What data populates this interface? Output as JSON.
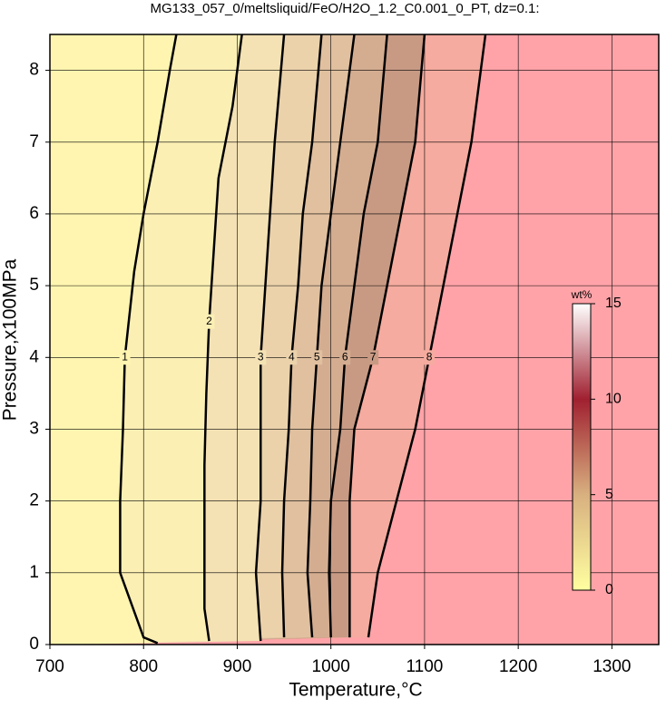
{
  "chart_data": {
    "type": "contour",
    "title": "MG133_057_0/meltsliquid/FeO/H2O_1.2_C0.001_0_PT, dz=0.1:",
    "xlabel": "Temperature,°C",
    "ylabel": "Pressure,x100MPa",
    "xlim": [
      700,
      1350
    ],
    "ylim": [
      0,
      8.5
    ],
    "xticks": [
      700,
      800,
      900,
      1000,
      1100,
      1200,
      1300
    ],
    "yticks": [
      0,
      1,
      2,
      3,
      4,
      5,
      6,
      7,
      8
    ],
    "grid": true,
    "background": "#ffa3a8",
    "contours": [
      {
        "label": "8",
        "fill": "#f5ab9f",
        "x": [
          1040,
          1050,
          1070,
          1090,
          1105,
          1120,
          1135,
          1150,
          1165
        ],
        "y": [
          0.1,
          1,
          2,
          3,
          4,
          5,
          6,
          7,
          8.5
        ]
      },
      {
        "label": "7",
        "fill": "#c89a84",
        "x": [
          1020,
          1020,
          1020,
          1025,
          1045,
          1060,
          1075,
          1090,
          1100
        ],
        "y": [
          0.1,
          1,
          2,
          3,
          4,
          5,
          6,
          7,
          8.5
        ]
      },
      {
        "label": "6",
        "fill": "#d4ad91",
        "x": [
          1000,
          998,
          1000,
          1010,
          1015,
          1025,
          1035,
          1050,
          1060
        ],
        "y": [
          0.1,
          1,
          2,
          3,
          4,
          5,
          6,
          7,
          8.5
        ]
      },
      {
        "label": "5",
        "fill": "#e0c09f",
        "x": [
          980,
          975,
          978,
          980,
          985,
          990,
          1000,
          1010,
          1025
        ],
        "y": [
          0.1,
          1,
          2,
          3,
          4,
          5,
          6,
          7,
          8.5
        ]
      },
      {
        "label": "4",
        "fill": "#ebd2ab",
        "x": [
          950,
          948,
          950,
          955,
          958,
          965,
          970,
          980,
          990
        ],
        "y": [
          0.1,
          1,
          2,
          3,
          4,
          5,
          6,
          7,
          8.5
        ]
      },
      {
        "label": "3",
        "fill": "#f4e2b4",
        "x": [
          925,
          920,
          925,
          925,
          925,
          930,
          935,
          940,
          950
        ],
        "y": [
          0.05,
          1,
          2,
          3,
          4,
          5,
          6,
          7,
          8.5
        ]
      },
      {
        "label": "2",
        "fill": "#fbefb4",
        "x": [
          870,
          865,
          865,
          865,
          867,
          870,
          875,
          880,
          895,
          905
        ],
        "y": [
          0.05,
          0.5,
          1.5,
          2.5,
          3.5,
          4.5,
          5.5,
          6.5,
          7.5,
          8.5
        ]
      },
      {
        "label": "1",
        "fill": "#fff5b0",
        "x": [
          815,
          800,
          775,
          775,
          778,
          780,
          790,
          800,
          815,
          828,
          835
        ],
        "y": [
          0.02,
          0.1,
          1,
          2,
          3,
          4,
          5.2,
          6,
          7,
          8,
          8.5
        ]
      }
    ],
    "colorbar": {
      "label": "wt%",
      "clim": [
        0,
        15
      ],
      "ticks": [
        0,
        5,
        10,
        15
      ],
      "colors": [
        "#ffffa0",
        "#d8b080",
        "#a02030",
        "#ffffff"
      ]
    }
  }
}
